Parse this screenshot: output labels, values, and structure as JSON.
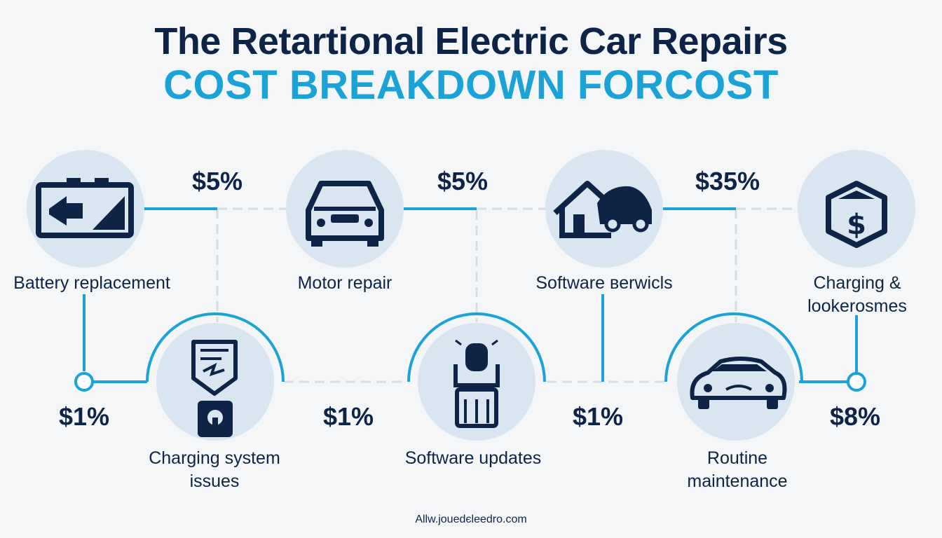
{
  "title": {
    "line1": "The Retartional Electric Car Repairs",
    "line2": "COST BREAKDOWN FORCOST"
  },
  "colors": {
    "navy": "#0e2447",
    "accent": "#1ba3d8",
    "icon_circle": "#d9e6f1",
    "dashed": "#d7dde3",
    "background": "#f4f6f8"
  },
  "items": [
    {
      "label": "Battery replacement",
      "icon": "battery-icon"
    },
    {
      "label": "Motor repair",
      "icon": "car-front-icon"
    },
    {
      "label": "Software вerwicls",
      "icon": "house-car-icon"
    },
    {
      "label": "Charging &\nlookerosmes",
      "icon": "shield-dollar-icon"
    },
    {
      "label": "Charging system\nissues",
      "icon": "charger-document-icon"
    },
    {
      "label": "Software updates",
      "icon": "charging-station-icon"
    },
    {
      "label": "Routine\nmaintenance",
      "icon": "sports-car-icon"
    }
  ],
  "percentages": {
    "top": [
      "$5%",
      "$5%",
      "$35%"
    ],
    "bottom": [
      "$1%",
      "$1%",
      "$1%",
      "$8%"
    ]
  },
  "footer": "Allw.jouedєleedro.com"
}
